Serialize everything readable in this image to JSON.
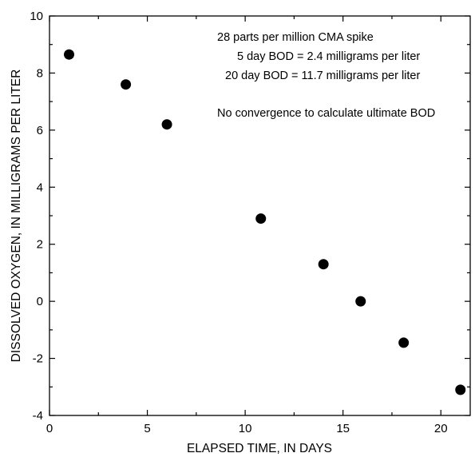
{
  "chart_data": {
    "type": "scatter",
    "xlabel": "ELAPSED TIME, IN DAYS",
    "ylabel": "DISSOLVED OXYGEN, IN MILLIGRAMS PER LITER",
    "xlim": [
      0,
      21.5
    ],
    "ylim": [
      -4,
      10
    ],
    "x_ticks": [
      0,
      5,
      10,
      15,
      20
    ],
    "x_tick_labels": [
      "0",
      "5",
      "10",
      "15",
      "20"
    ],
    "x_minor_step": 2.5,
    "y_ticks": [
      -4,
      -2,
      0,
      2,
      4,
      6,
      8,
      10
    ],
    "y_tick_labels": [
      "-4",
      "-2",
      "0",
      "2",
      "4",
      "6",
      "8",
      "10"
    ],
    "y_minor_step": 1,
    "grid": false,
    "legend": "none",
    "series": [
      {
        "x": [
          1.0,
          3.9,
          6.0,
          10.8,
          14.0,
          15.9,
          18.1,
          21.0
        ],
        "y": [
          8.65,
          7.6,
          6.2,
          2.9,
          1.3,
          0.0,
          -1.45,
          -3.1
        ]
      }
    ],
    "annotations": [
      "28 parts per million CMA spike",
      "5 day BOD = 2.4 milligrams per liter",
      "20 day BOD = 11.7 milligrams per liter",
      "No convergence to calculate ultimate BOD"
    ],
    "marker_color": "#000000"
  }
}
